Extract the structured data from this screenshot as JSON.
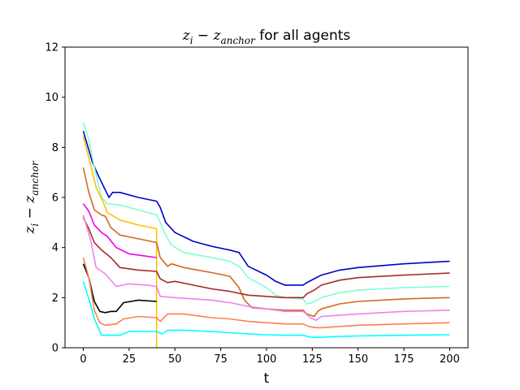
{
  "chart_data": {
    "type": "line",
    "title": {
      "z": "z",
      "i": "i",
      "minus": " − ",
      "anchor": "anchor",
      "suffix": " for all agents"
    },
    "xlabel": "t",
    "ylabel": {
      "z": "z",
      "i": "i",
      "minus": " − ",
      "anchor": "anchor"
    },
    "xlim": [
      -10,
      210
    ],
    "ylim": [
      0,
      12
    ],
    "xticks": [
      0,
      25,
      50,
      75,
      100,
      125,
      150,
      175,
      200
    ],
    "yticks": [
      0,
      2,
      4,
      6,
      8,
      10,
      12
    ],
    "grid": false,
    "legend": "none",
    "series": [
      {
        "color": "#0000cd",
        "points": [
          [
            0,
            8.65
          ],
          [
            5,
            7.4
          ],
          [
            8,
            6.9
          ],
          [
            12,
            6.3
          ],
          [
            14,
            6.0
          ],
          [
            16,
            6.2
          ],
          [
            20,
            6.2
          ],
          [
            30,
            6.0
          ],
          [
            40,
            5.85
          ],
          [
            42,
            5.6
          ],
          [
            45,
            5.0
          ],
          [
            50,
            4.6
          ],
          [
            60,
            4.25
          ],
          [
            70,
            4.05
          ],
          [
            80,
            3.9
          ],
          [
            85,
            3.8
          ],
          [
            90,
            3.25
          ],
          [
            100,
            2.9
          ],
          [
            105,
            2.65
          ],
          [
            110,
            2.5
          ],
          [
            120,
            2.5
          ],
          [
            122,
            2.6
          ],
          [
            130,
            2.9
          ],
          [
            140,
            3.1
          ],
          [
            150,
            3.2
          ],
          [
            175,
            3.35
          ],
          [
            200,
            3.45
          ]
        ]
      },
      {
        "color": "#7fffd4",
        "points": [
          [
            0,
            9.0
          ],
          [
            3,
            8.3
          ],
          [
            6,
            7.2
          ],
          [
            10,
            6.0
          ],
          [
            13,
            5.75
          ],
          [
            20,
            5.7
          ],
          [
            30,
            5.5
          ],
          [
            40,
            5.3
          ],
          [
            42,
            5.0
          ],
          [
            45,
            4.5
          ],
          [
            48,
            4.1
          ],
          [
            55,
            3.8
          ],
          [
            70,
            3.6
          ],
          [
            80,
            3.45
          ],
          [
            85,
            3.25
          ],
          [
            90,
            2.8
          ],
          [
            100,
            2.4
          ],
          [
            105,
            2.1
          ],
          [
            110,
            2.0
          ],
          [
            120,
            1.95
          ],
          [
            122,
            1.75
          ],
          [
            125,
            1.8
          ],
          [
            130,
            2.0
          ],
          [
            140,
            2.2
          ],
          [
            150,
            2.3
          ],
          [
            175,
            2.4
          ],
          [
            200,
            2.45
          ]
        ]
      },
      {
        "color": "#ffc000",
        "points": [
          [
            0,
            8.45
          ],
          [
            4,
            7.3
          ],
          [
            7,
            6.4
          ],
          [
            11,
            5.8
          ],
          [
            13,
            5.4
          ],
          [
            20,
            5.1
          ],
          [
            30,
            4.9
          ],
          [
            40,
            4.75
          ],
          [
            40,
            0
          ]
        ]
      },
      {
        "color": "#d2691e",
        "points": [
          [
            0,
            7.2
          ],
          [
            3,
            6.2
          ],
          [
            6,
            5.5
          ],
          [
            10,
            5.3
          ],
          [
            12,
            5.25
          ],
          [
            15,
            4.8
          ],
          [
            20,
            4.5
          ],
          [
            30,
            4.35
          ],
          [
            40,
            4.2
          ],
          [
            42,
            3.6
          ],
          [
            46,
            3.25
          ],
          [
            48,
            3.35
          ],
          [
            55,
            3.2
          ],
          [
            70,
            3.0
          ],
          [
            80,
            2.85
          ],
          [
            85,
            2.4
          ],
          [
            88,
            1.9
          ],
          [
            92,
            1.6
          ],
          [
            100,
            1.55
          ],
          [
            110,
            1.5
          ],
          [
            120,
            1.5
          ],
          [
            122,
            1.35
          ],
          [
            126,
            1.25
          ],
          [
            128,
            1.45
          ],
          [
            130,
            1.55
          ],
          [
            140,
            1.75
          ],
          [
            150,
            1.85
          ],
          [
            175,
            1.95
          ],
          [
            200,
            2.0
          ]
        ]
      },
      {
        "color": "#ee00ee",
        "points": [
          [
            0,
            5.75
          ],
          [
            3,
            5.45
          ],
          [
            6,
            4.9
          ],
          [
            10,
            4.6
          ],
          [
            13,
            4.45
          ],
          [
            18,
            4.0
          ],
          [
            25,
            3.75
          ],
          [
            30,
            3.7
          ],
          [
            40,
            3.6
          ]
        ]
      },
      {
        "color": "#a52a2a",
        "points": [
          [
            0,
            5.2
          ],
          [
            3,
            4.75
          ],
          [
            6,
            4.2
          ],
          [
            10,
            3.9
          ],
          [
            15,
            3.6
          ],
          [
            20,
            3.2
          ],
          [
            30,
            3.1
          ],
          [
            40,
            3.05
          ],
          [
            42,
            2.75
          ],
          [
            46,
            2.6
          ],
          [
            50,
            2.65
          ],
          [
            60,
            2.5
          ],
          [
            70,
            2.35
          ],
          [
            80,
            2.25
          ],
          [
            90,
            2.1
          ],
          [
            100,
            2.05
          ],
          [
            110,
            2.0
          ],
          [
            120,
            2.0
          ],
          [
            122,
            2.15
          ],
          [
            126,
            2.3
          ],
          [
            130,
            2.5
          ],
          [
            140,
            2.7
          ],
          [
            150,
            2.8
          ],
          [
            175,
            2.9
          ],
          [
            200,
            2.98
          ]
        ]
      },
      {
        "color": "#ee82ee",
        "points": [
          [
            0,
            5.3
          ],
          [
            4,
            4.3
          ],
          [
            7,
            3.2
          ],
          [
            12,
            2.95
          ],
          [
            18,
            2.45
          ],
          [
            25,
            2.55
          ],
          [
            35,
            2.5
          ],
          [
            40,
            2.45
          ],
          [
            42,
            2.05
          ],
          [
            50,
            2.0
          ],
          [
            70,
            1.9
          ],
          [
            80,
            1.8
          ],
          [
            90,
            1.65
          ],
          [
            100,
            1.55
          ],
          [
            110,
            1.45
          ],
          [
            120,
            1.45
          ],
          [
            124,
            1.2
          ],
          [
            127,
            1.1
          ],
          [
            130,
            1.25
          ],
          [
            140,
            1.3
          ],
          [
            150,
            1.35
          ],
          [
            175,
            1.45
          ],
          [
            200,
            1.5
          ]
        ]
      },
      {
        "color": "#000000",
        "points": [
          [
            0,
            3.35
          ],
          [
            3,
            2.8
          ],
          [
            6,
            1.85
          ],
          [
            9,
            1.45
          ],
          [
            12,
            1.4
          ],
          [
            15,
            1.45
          ],
          [
            18,
            1.45
          ],
          [
            22,
            1.8
          ],
          [
            30,
            1.9
          ],
          [
            40,
            1.85
          ]
        ]
      },
      {
        "color": "#ff7f50",
        "points": [
          [
            0,
            3.6
          ],
          [
            3,
            2.8
          ],
          [
            6,
            1.5
          ],
          [
            9,
            1.0
          ],
          [
            12,
            0.9
          ],
          [
            18,
            0.95
          ],
          [
            22,
            1.15
          ],
          [
            30,
            1.25
          ],
          [
            40,
            1.2
          ],
          [
            42,
            1.05
          ],
          [
            46,
            1.35
          ],
          [
            55,
            1.35
          ],
          [
            70,
            1.2
          ],
          [
            80,
            1.15
          ],
          [
            90,
            1.05
          ],
          [
            100,
            1.0
          ],
          [
            110,
            0.95
          ],
          [
            120,
            0.95
          ],
          [
            123,
            0.85
          ],
          [
            127,
            0.8
          ],
          [
            130,
            0.8
          ],
          [
            140,
            0.85
          ],
          [
            150,
            0.9
          ],
          [
            175,
            0.95
          ],
          [
            200,
            1.0
          ]
        ]
      },
      {
        "color": "#00ffff",
        "points": [
          [
            0,
            2.65
          ],
          [
            3,
            1.95
          ],
          [
            6,
            1.15
          ],
          [
            10,
            0.5
          ],
          [
            15,
            0.5
          ],
          [
            20,
            0.5
          ],
          [
            25,
            0.65
          ],
          [
            35,
            0.65
          ],
          [
            40,
            0.65
          ],
          [
            43,
            0.55
          ],
          [
            46,
            0.7
          ],
          [
            55,
            0.7
          ],
          [
            70,
            0.65
          ],
          [
            80,
            0.6
          ],
          [
            90,
            0.55
          ],
          [
            100,
            0.52
          ],
          [
            110,
            0.5
          ],
          [
            120,
            0.5
          ],
          [
            124,
            0.42
          ],
          [
            130,
            0.42
          ],
          [
            140,
            0.45
          ],
          [
            150,
            0.47
          ],
          [
            175,
            0.5
          ],
          [
            200,
            0.52
          ]
        ]
      }
    ]
  }
}
